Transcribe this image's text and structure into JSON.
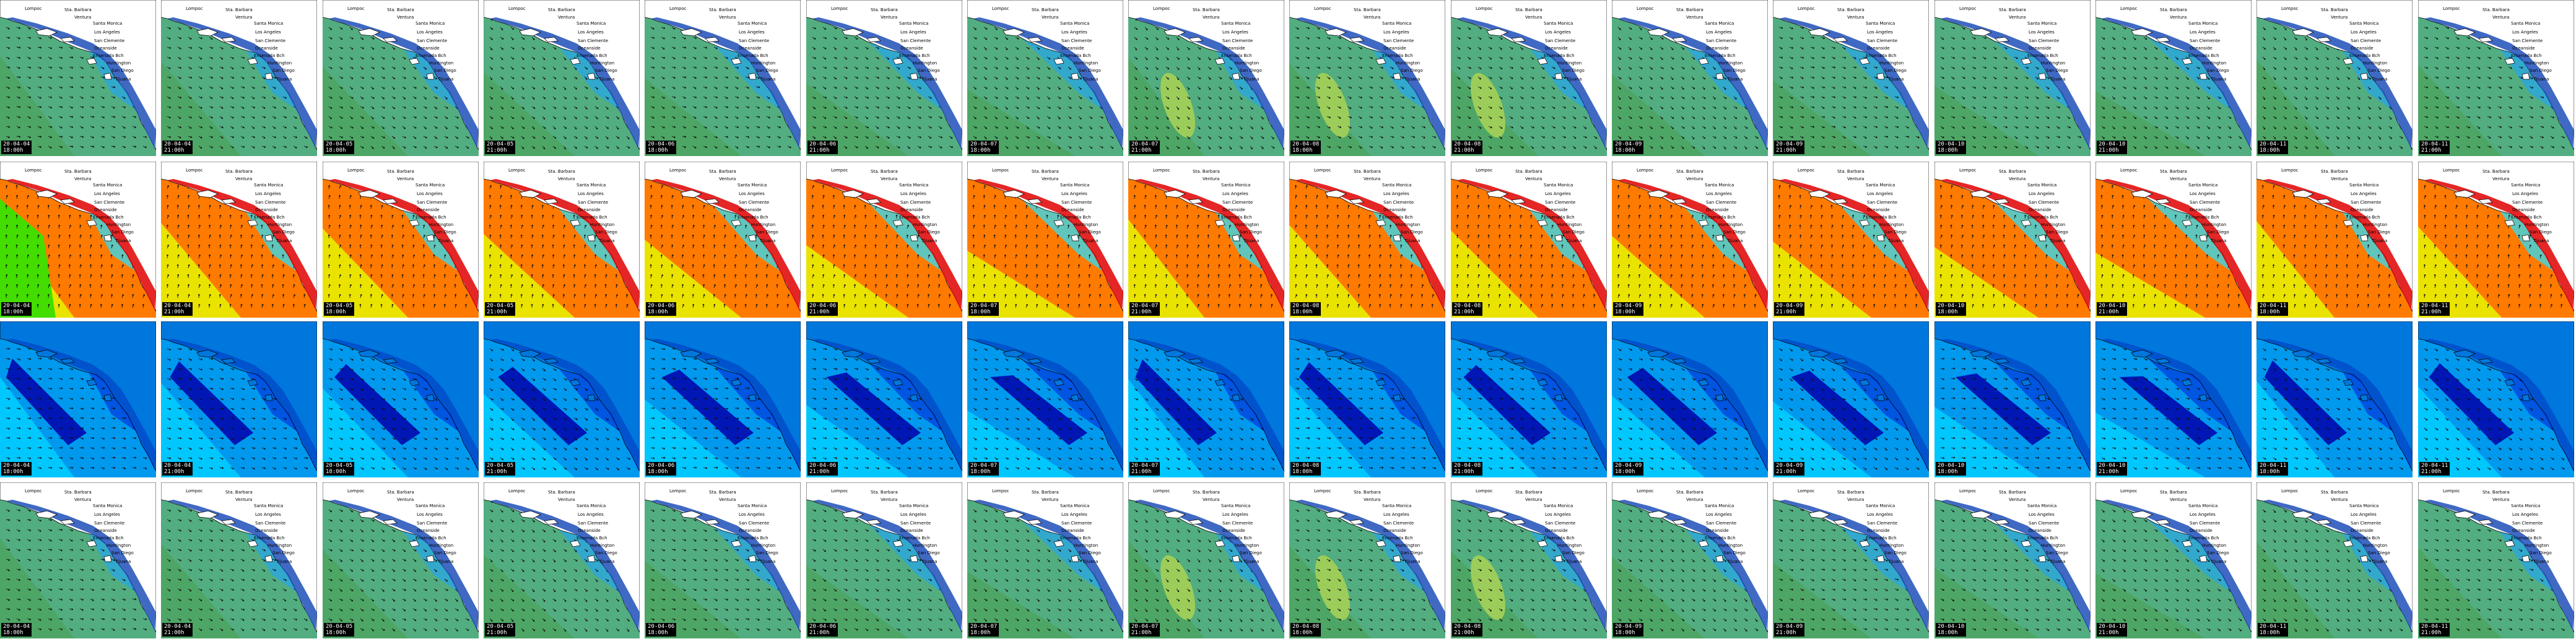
{
  "rows": [
    {
      "id": "row-1",
      "palette": "swell",
      "colors": {
        "base": "#52ad80",
        "zone2": "#4da562",
        "zone3": "#2aa6e0",
        "zone4": "#1f4fb8",
        "land": "#ffffff",
        "blob": "#9ccd5a"
      }
    },
    {
      "id": "row-2",
      "palette": "period",
      "colors": {
        "base": "#ff7a00",
        "zone2": "#e8ee00",
        "zone3": "#38d8e8",
        "zone4": "#e00000",
        "land": "#ffffff",
        "blob": "#44dd00"
      }
    },
    {
      "id": "row-3",
      "palette": "wind",
      "colors": {
        "base": "#0099ee",
        "zone2": "#00ccff",
        "zone3": "#0044dd",
        "zone4": "#0000aa",
        "land": "#0077dd",
        "blob": "#33ee88"
      }
    },
    {
      "id": "row-4",
      "palette": "swell",
      "colors": {
        "base": "#52ad80",
        "zone2": "#4da562",
        "zone3": "#2aa6e0",
        "zone4": "#1f4fb8",
        "land": "#ffffff",
        "blob": "#9ccd5a"
      }
    }
  ],
  "timestamps": [
    {
      "date": "20-04-04",
      "hour": "18:00h"
    },
    {
      "date": "20-04-04",
      "hour": "21:00h"
    },
    {
      "date": "20-04-05",
      "hour": "18:00h"
    },
    {
      "date": "20-04-05",
      "hour": "21:00h"
    },
    {
      "date": "20-04-06",
      "hour": "18:00h"
    },
    {
      "date": "20-04-06",
      "hour": "21:00h"
    },
    {
      "date": "20-04-07",
      "hour": "18:00h"
    },
    {
      "date": "20-04-07",
      "hour": "21:00h"
    },
    {
      "date": "20-04-08",
      "hour": "18:00h"
    },
    {
      "date": "20-04-08",
      "hour": "21:00h"
    },
    {
      "date": "20-04-09",
      "hour": "18:00h"
    },
    {
      "date": "20-04-09",
      "hour": "21:00h"
    },
    {
      "date": "20-04-10",
      "hour": "18:00h"
    },
    {
      "date": "20-04-10",
      "hour": "21:00h"
    },
    {
      "date": "20-04-11",
      "hour": "18:00h"
    },
    {
      "date": "20-04-11",
      "hour": "21:00h"
    }
  ],
  "place_labels": [
    "Lompoc",
    "Sta. Barbara",
    "Ventura",
    "Santa Monica",
    "Los Angeles",
    "San Clemente",
    "Oceanside",
    "Ensenada Bch",
    "Huntington",
    "San Diego",
    "Tijuana"
  ]
}
